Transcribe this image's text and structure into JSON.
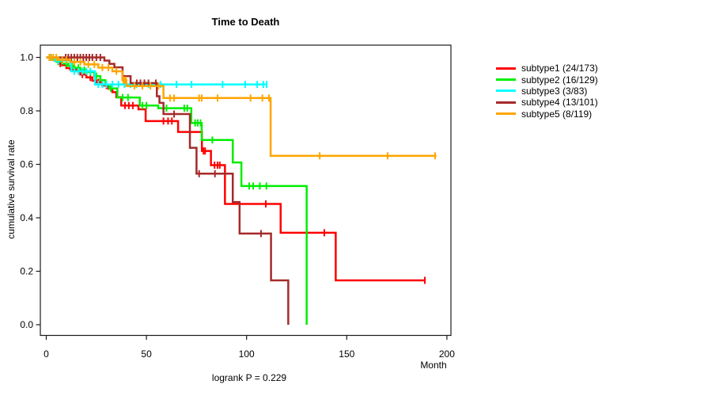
{
  "title": "Time to Death",
  "y_axis_label": "cumulative survival rate",
  "x_axis_label": "Month",
  "footer_annotation": "logrank P = 0.229",
  "legend": [
    {
      "label": "subtype1 (24/173)",
      "color": "#FF0000"
    },
    {
      "label": "subtype2 (16/129)",
      "color": "#00EE00"
    },
    {
      "label": "subtype3 (3/83)",
      "color": "#00FFFF"
    },
    {
      "label": "subtype4 (13/101)",
      "color": "#A52A2A"
    },
    {
      "label": "subtype5 (8/119)",
      "color": "#FFA500"
    }
  ],
  "chart_data": {
    "type": "line",
    "subtype": "kaplan-meier-step",
    "title": "Time to Death",
    "xlabel": "Month",
    "ylabel": "cumulative survival rate",
    "xlim": [
      0,
      200
    ],
    "ylim": [
      0.0,
      1.0
    ],
    "x_ticks": [
      0,
      50,
      100,
      150,
      200
    ],
    "y_ticks": [
      0.0,
      0.2,
      0.4,
      0.6,
      0.8,
      1.0
    ],
    "grid": false,
    "legend_position": "right",
    "annotation": "logrank P = 0.229",
    "series": [
      {
        "name": "subtype1 (24/173)",
        "color": "#FF0000",
        "deaths": 24,
        "n": 173,
        "steps": [
          [
            0,
            1.0
          ],
          [
            2,
            0.994
          ],
          [
            4,
            0.988
          ],
          [
            6,
            0.977
          ],
          [
            8,
            0.971
          ],
          [
            10,
            0.96
          ],
          [
            12,
            0.954
          ],
          [
            15,
            0.948
          ],
          [
            17,
            0.936
          ],
          [
            20,
            0.925
          ],
          [
            23,
            0.913
          ],
          [
            25,
            0.907
          ],
          [
            28,
            0.895
          ],
          [
            31,
            0.883
          ],
          [
            33,
            0.87
          ],
          [
            35,
            0.851
          ],
          [
            37.4,
            0.82
          ],
          [
            46,
            0.806
          ],
          [
            49.6,
            0.762
          ],
          [
            65.8,
            0.721
          ],
          [
            77.7,
            0.65
          ],
          [
            82.2,
            0.597
          ],
          [
            89.2,
            0.452
          ],
          [
            117,
            0.344
          ],
          [
            144.5,
            0.166
          ]
        ],
        "end_month": 189.3,
        "censor_months": [
          7,
          14,
          18,
          22,
          26,
          30,
          39.3,
          41.2,
          43.2,
          58.5,
          60.8,
          62.7,
          71.7,
          78.5,
          79.3,
          84,
          85.5,
          86.6,
          109.6,
          138.8,
          189
        ]
      },
      {
        "name": "subtype2 (16/129)",
        "color": "#00EE00",
        "deaths": 16,
        "n": 129,
        "steps": [
          [
            0,
            1.0
          ],
          [
            3,
            0.992
          ],
          [
            5,
            0.984
          ],
          [
            8,
            0.977
          ],
          [
            11,
            0.969
          ],
          [
            14,
            0.961
          ],
          [
            17,
            0.953
          ],
          [
            20,
            0.945
          ],
          [
            24,
            0.93
          ],
          [
            27,
            0.915
          ],
          [
            29.5,
            0.898
          ],
          [
            31.5,
            0.884
          ],
          [
            35.5,
            0.85
          ],
          [
            46.7,
            0.82
          ],
          [
            55.9,
            0.81
          ],
          [
            72.4,
            0.755
          ],
          [
            77.6,
            0.691
          ],
          [
            93.1,
            0.607
          ],
          [
            97.4,
            0.519
          ],
          [
            130,
            0.0
          ]
        ],
        "end_month": 130,
        "censor_months": [
          6,
          10,
          13,
          16,
          19,
          22,
          25,
          32.2,
          38.1,
          40.8,
          48,
          50,
          60,
          68.9,
          70.4,
          74.3,
          75.6,
          77,
          82.9,
          101.3,
          103.3,
          106.6,
          109.9
        ]
      },
      {
        "name": "subtype3 (3/83)",
        "color": "#00FFFF",
        "deaths": 3,
        "n": 83,
        "steps": [
          [
            0,
            1.0
          ],
          [
            4,
            0.988
          ],
          [
            12.5,
            0.948
          ],
          [
            24.3,
            0.899
          ]
        ],
        "end_month": 110,
        "censor_months": [
          2,
          6,
          8,
          10,
          14,
          16,
          18,
          20,
          22,
          26,
          28,
          30,
          33,
          36,
          39,
          42,
          45,
          51,
          57,
          65,
          72.5,
          88,
          99.3,
          105.3,
          108.4,
          110
        ]
      },
      {
        "name": "subtype4 (13/101)",
        "color": "#A52A2A",
        "deaths": 13,
        "n": 101,
        "steps": [
          [
            0,
            1.0
          ],
          [
            29,
            0.988
          ],
          [
            31.5,
            0.976
          ],
          [
            34,
            0.963
          ],
          [
            38.1,
            0.93
          ],
          [
            42.1,
            0.904
          ],
          [
            55.2,
            0.855
          ],
          [
            56.5,
            0.83
          ],
          [
            58.5,
            0.788
          ],
          [
            71.7,
            0.662
          ],
          [
            75,
            0.565
          ],
          [
            93.1,
            0.459
          ],
          [
            96.5,
            0.341
          ],
          [
            112.2,
            0.166
          ],
          [
            120.8,
            0.0
          ]
        ],
        "end_month": 120.8,
        "censor_months": [
          9.7,
          11,
          12.5,
          14,
          15.5,
          17,
          18.5,
          20,
          21.5,
          23,
          25,
          27,
          45.2,
          47,
          49,
          51,
          54.7,
          63.8,
          76.3,
          84.2,
          107.2
        ]
      },
      {
        "name": "subtype5 (8/119)",
        "color": "#FFA500",
        "deaths": 8,
        "n": 119,
        "steps": [
          [
            0,
            1.0
          ],
          [
            6,
            0.991
          ],
          [
            12,
            0.983
          ],
          [
            19,
            0.974
          ],
          [
            26,
            0.962
          ],
          [
            33,
            0.948
          ],
          [
            38,
            0.915
          ],
          [
            40,
            0.893
          ],
          [
            58.5,
            0.848
          ],
          [
            112,
            0.632
          ]
        ],
        "end_month": 194.8,
        "censor_months": [
          1.5,
          2.5,
          3.5,
          5,
          8,
          10,
          14,
          17,
          21,
          24,
          28,
          31,
          35,
          38.5,
          39.2,
          39.8,
          44,
          48,
          52,
          56,
          61.8,
          63.8,
          76.3,
          77.6,
          85.5,
          102,
          107.9,
          111.2,
          136.5,
          170.4,
          194.1
        ]
      }
    ]
  }
}
